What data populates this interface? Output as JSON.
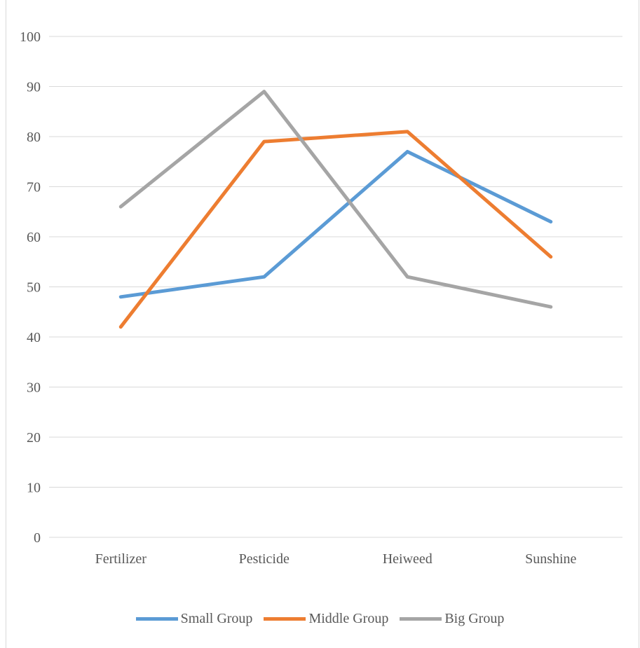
{
  "chart_data": {
    "type": "line",
    "title": "",
    "xlabel": "",
    "ylabel": "",
    "categories": [
      "Fertilizer",
      "Pesticide",
      "Heiweed",
      "Sunshine"
    ],
    "ylim": [
      0,
      100
    ],
    "yticks": [
      "0",
      "10",
      "20",
      "30",
      "40",
      "50",
      "60",
      "70",
      "80",
      "90",
      "100"
    ],
    "grid": true,
    "legend": "bottom",
    "series": [
      {
        "name": "Small Group",
        "color": "#5b9bd5",
        "values": [
          48,
          52,
          77,
          63
        ]
      },
      {
        "name": "Middle Group",
        "color": "#ed7d31",
        "values": [
          42,
          79,
          81,
          56
        ]
      },
      {
        "name": "Big Group",
        "color": "#a5a5a5",
        "values": [
          66,
          89,
          52,
          46
        ]
      }
    ]
  }
}
